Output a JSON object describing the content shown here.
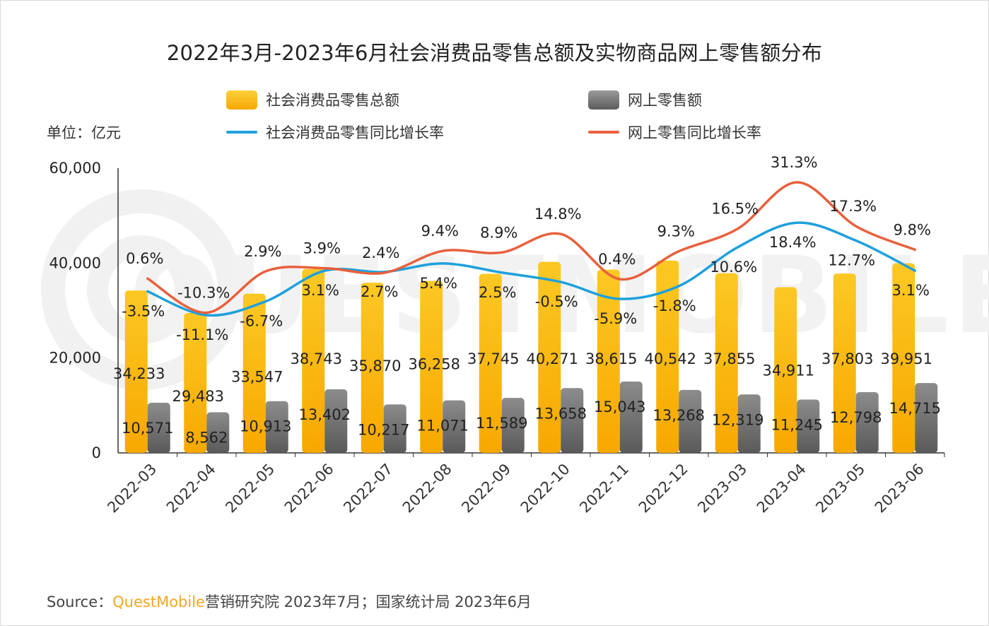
{
  "title": "2022年3月-2023年6月社会消费品零售总额及实物商品网上零售额分布",
  "unit_label": "单位：亿元",
  "legend": {
    "total_sales": "社会消费品零售总额",
    "online_sales": "网上零售额",
    "total_growth": "社会消费品零售同比增长率",
    "online_growth": "网上零售同比增长率"
  },
  "source": {
    "prefix": "Source：",
    "brand": "QuestMobile",
    "suffix": "营销研究院 2023年7月；国家统计局 2023年6月"
  },
  "colors": {
    "total_bar": "#fbbb0f",
    "online_bar": "#707070",
    "total_line": "#1ea0dc",
    "online_line": "#e8603c",
    "brand": "#f5a623"
  },
  "chart_data": {
    "type": "bar",
    "categories": [
      "2022-03",
      "2022-04",
      "2022-05",
      "2022-06",
      "2022-07",
      "2022-08",
      "2022-09",
      "2022-10",
      "2022-11",
      "2022-12",
      "2023-03",
      "2023-04",
      "2023-05",
      "2023-06"
    ],
    "ylim": [
      0,
      60000
    ],
    "yticks": [
      "0",
      "20,000",
      "40,000",
      "60,000"
    ],
    "series": [
      {
        "name": "社会消费品零售总额",
        "type": "bar",
        "values": [
          34233,
          29483,
          33547,
          38743,
          35870,
          36258,
          37745,
          40271,
          38615,
          40542,
          37855,
          34911,
          37803,
          39951
        ],
        "labels": [
          "34,233",
          "29,483",
          "33,547",
          "38,743",
          "35,870",
          "36,258",
          "37,745",
          "40,271",
          "38,615",
          "40,542",
          "37,855",
          "34,911",
          "37,803",
          "39,951"
        ]
      },
      {
        "name": "网上零售额",
        "type": "bar",
        "values": [
          10571,
          8562,
          10913,
          13402,
          10217,
          11071,
          11589,
          13658,
          15043,
          13268,
          12319,
          11245,
          12798,
          14715
        ],
        "labels": [
          "10,571",
          "8,562",
          "10,913",
          "13,402",
          "10,217",
          "11,071",
          "11,589",
          "13,658",
          "15,043",
          "13,268",
          "12,319",
          "11,245",
          "12,798",
          "14,715"
        ]
      },
      {
        "name": "社会消费品零售同比增长率",
        "type": "line",
        "values": [
          -3.5,
          -11.1,
          -6.7,
          3.1,
          2.7,
          5.4,
          2.5,
          -0.5,
          -5.9,
          -1.8,
          10.6,
          18.4,
          12.7,
          3.1
        ],
        "labels": [
          "-3.5%",
          "-11.1%",
          "-6.7%",
          "3.1%",
          "2.7%",
          "5.4%",
          "2.5%",
          "-0.5%",
          "-5.9%",
          "-1.8%",
          "10.6%",
          "18.4%",
          "12.7%",
          "3.1%"
        ]
      },
      {
        "name": "网上零售同比增长率",
        "type": "line",
        "values": [
          0.6,
          -10.3,
          2.9,
          3.9,
          2.4,
          9.4,
          8.9,
          14.8,
          0.4,
          9.3,
          16.5,
          31.3,
          17.3,
          9.8
        ],
        "labels": [
          "0.6%",
          "-10.3%",
          "2.9%",
          "3.9%",
          "2.4%",
          "9.4%",
          "8.9%",
          "14.8%",
          "0.4%",
          "9.3%",
          "16.5%",
          "31.3%",
          "17.3%",
          "9.8%"
        ]
      }
    ],
    "watermark": "QUESTMOBILE"
  }
}
